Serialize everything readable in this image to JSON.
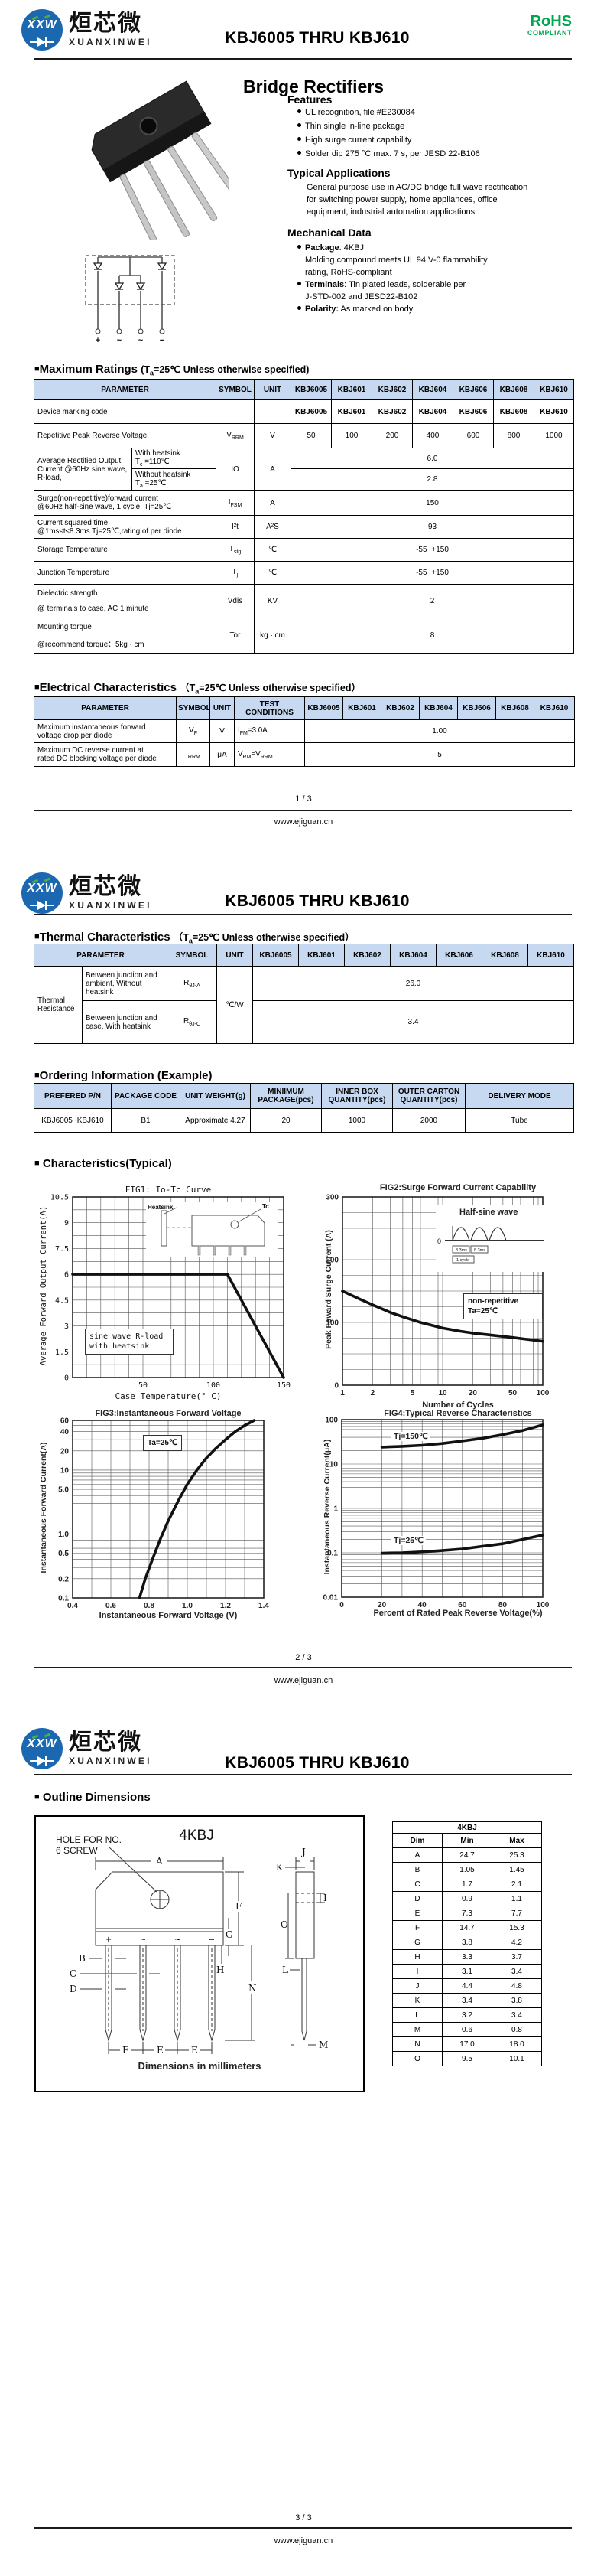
{
  "brand": {
    "logo_xxw": "XXW",
    "logo_cn": "烜芯微",
    "logo_en": "XUANXINWEI",
    "doc_title": "KBJ6005 THRU KBJ610",
    "rohs": "RoHS",
    "rohs_sub": "COMPLIANT",
    "site": "www.ejiguan.cn"
  },
  "footer": {
    "p1": "1 / 3",
    "p2": "2 / 3",
    "p3": "3 / 3"
  },
  "models": [
    "KBJ6005",
    "KBJ601",
    "KBJ602",
    "KBJ604",
    "KBJ606",
    "KBJ608",
    "KBJ610"
  ],
  "page1": {
    "product_title": "Bridge Rectifiers",
    "features": {
      "title": "Features",
      "items": [
        "UL recognition, file #E230084",
        "Thin single in-line package",
        "High surge current capability",
        "Solder dip 275 °C max. 7 s, per JESD 22-B106"
      ]
    },
    "applications": {
      "title": "Typical  Applications",
      "lines": [
        "General purpose use in AC/DC bridge full wave rectification",
        "for switching power supply, home appliances, office",
        "equipment, industrial automation applications."
      ]
    },
    "mechanical": {
      "title": "Mechanical Data",
      "items": [
        {
          "bold": "Package",
          "rest": ": 4KBJ"
        },
        {
          "bold": "",
          "rest": "Molding compound meets UL 94 V-0 flammability"
        },
        {
          "bold": "",
          "rest": "rating, RoHS-compliant"
        },
        {
          "bold": "Terminals",
          "rest": ": Tin plated leads, solderable per"
        },
        {
          "bold": "",
          "rest": "J-STD-002 and JESD22-B102"
        },
        {
          "bold": "Polarity:",
          "rest": " As marked on body"
        }
      ]
    },
    "schematic_terminals": [
      "+",
      "~",
      "~",
      "−"
    ]
  },
  "max_ratings": {
    "marker": "■",
    "title": "Maximum Ratings",
    "cond_pre": "(T",
    "cond_sub": "a",
    "cond_rest": "=25℃ Unless otherwise specified)",
    "h_param": "PARAMETER",
    "h_symbol": "SYMBOL",
    "h_unit": "UNIT",
    "marking": {
      "param": "Device marking code"
    },
    "vrrm": {
      "param": "Repetitive Peak Reverse Voltage",
      "sym": "V",
      "sym_sub": "RRM",
      "unit": "V",
      "values": [
        "50",
        "100",
        "200",
        "400",
        "600",
        "800",
        "1000"
      ]
    },
    "io": {
      "param": "Average Rectified Output Current @60Hz sine wave, R-load,",
      "c1l1": "With heatsink",
      "c1p": "T",
      "c1s": "c",
      "c1r": " =110℃",
      "c2l1": "Without heatsink",
      "c2p": "T",
      "c2s": "a",
      "c2r": " =25℃",
      "sym": "IO",
      "unit": "A",
      "v1": "6.0",
      "v2": "2.8"
    },
    "ifsm": {
      "p1": "Surge(non-repetitive)forward current",
      "p2": "@60Hz half-sine wave, 1 cycle,  Tj=25℃",
      "sym": "I",
      "sym_sub": "FSM",
      "unit": "A",
      "value": "150"
    },
    "i2t": {
      "p1": "Current squared time",
      "p2": "@1ms≤t≤8.3ms Tj=25℃,rating of per diode",
      "sym": "I²t",
      "unit": "A²S",
      "value": "93"
    },
    "tstg": {
      "param": "Storage Temperature",
      "sym": "T",
      "sym_sub": "stg",
      "unit": "℃",
      "value": "-55~+150"
    },
    "tj": {
      "param": "Junction Temperature",
      "sym": "T",
      "sym_sub": "j",
      "unit": "℃",
      "value": "-55~+150"
    },
    "vdis": {
      "p1": "Dielectric strength",
      "p2": "@ terminals to case, AC 1 minute",
      "sym": "Vdis",
      "unit": "KV",
      "value": "2"
    },
    "tor": {
      "p1": "Mounting torque",
      "p2": "@recommend torque：5kg · cm",
      "sym": "Tor",
      "unit": "kg · cm",
      "value": "8"
    }
  },
  "electrical": {
    "marker": "■",
    "title": "Electrical Characteristics",
    "cond_pre": "（T",
    "cond_sub": "a",
    "cond_rest": "=25℃ Unless otherwise specified）",
    "h_param": "PARAMETER",
    "h_symbol": "SYMBOL",
    "h_unit": "UNIT",
    "h_test": "TEST CONDITIONS",
    "vf": {
      "p1": "Maximum instantaneous forward",
      "p2": "voltage drop per diode",
      "sym": "V",
      "sym_sub": "F",
      "unit": "V",
      "cond_b": "I",
      "cond_s": "FM",
      "cond_r": "=3.0A",
      "value": "1.00"
    },
    "irrm": {
      "p1": "Maximum DC reverse current at",
      "p2": "rated DC blocking voltage per diode",
      "sym": "I",
      "sym_sub": "RRM",
      "unit": "μA",
      "cond_b": "V",
      "cond_s": "RM",
      "cond_r": "=V",
      "cond_s2": "RRM",
      "value": "5"
    }
  },
  "thermal": {
    "marker": "■",
    "title": "Thermal Characteristics",
    "cond_pre": "（T",
    "cond_sub": "a",
    "cond_rest": "=25℃ Unless otherwise specified）",
    "h_param": "PARAMETER",
    "h_symbol": "SYMBOL",
    "h_unit": "UNIT",
    "group": "Thermal Resistance",
    "r1": {
      "p": "Between junction and ambient, Without heatsink",
      "sym": "R",
      "sym_sub": "θJ-A",
      "value": "26.0"
    },
    "r2": {
      "p": "Between junction and case, With heatsink",
      "sym": "R",
      "sym_sub": "θJ-C",
      "value": "3.4"
    },
    "unit": "℃/W"
  },
  "ordering": {
    "marker": "■",
    "title": "Ordering Information (Example)",
    "headers": [
      "PREFERED P/N",
      "PACKAGE CODE",
      "UNIT WEIGHT(g)",
      "MINIIMUM PACKAGE(pcs)",
      "INNER BOX QUANTITY(pcs)",
      "OUTER CARTON QUANTITY(pcs)",
      "DELIVERY MODE"
    ],
    "row": [
      "KBJ6005~KBJ610",
      "B1",
      "Approximate 4.27",
      "20",
      "1000",
      "2000",
      "Tube"
    ]
  },
  "characteristics": {
    "marker": "■",
    "title": "Characteristics(Typical)"
  },
  "chart_data": [
    {
      "id": "fig1",
      "type": "line",
      "title": "FIG1: Io-Tc Curve",
      "xlabel": "Case Temperature(° C)",
      "ylabel": "Average Forward Output Current(A)",
      "xscale": "linear",
      "yscale": "linear",
      "xlim": [
        0,
        150
      ],
      "ylim": [
        0,
        10.5
      ],
      "xticks": [
        [
          50,
          "50"
        ],
        [
          100,
          "100"
        ],
        [
          150,
          "150"
        ]
      ],
      "yticks": [
        [
          0,
          "0"
        ],
        [
          1.5,
          "1.5"
        ],
        [
          3,
          "3"
        ],
        [
          4.5,
          "4.5"
        ],
        [
          6,
          "6"
        ],
        [
          7.5,
          "7.5"
        ],
        [
          9,
          "9"
        ],
        [
          10.5,
          "10.5"
        ]
      ],
      "xgrid": [
        10,
        20,
        30,
        40,
        50,
        60,
        70,
        80,
        90,
        100,
        110,
        120,
        130,
        140
      ],
      "ygrid": [
        0.75,
        1.5,
        2.25,
        3,
        3.75,
        4.5,
        5.25,
        6,
        6.75,
        7.5,
        8.25,
        9,
        9.75
      ],
      "annotation_lines": [
        "sine wave R-load",
        "with heatsink"
      ],
      "inset": [
        "Heatsink",
        "Tc"
      ],
      "series": [
        {
          "name": "Io vs Tc",
          "points": [
            [
              0,
              6
            ],
            [
              110,
              6
            ],
            [
              150,
              0
            ]
          ]
        }
      ]
    },
    {
      "id": "fig2",
      "type": "line",
      "title": "FIG2:Surge Forward Current Capability",
      "xlabel": "Number of Cycles",
      "ylabel": "Peak Foward Surge Current (A)",
      "xscale": "log",
      "yscale": "linear",
      "xlim": [
        1,
        100
      ],
      "ylim": [
        0,
        300
      ],
      "xticks": [
        [
          1,
          "1"
        ],
        [
          2,
          "2"
        ],
        [
          5,
          "5"
        ],
        [
          10,
          "10"
        ],
        [
          20,
          "20"
        ],
        [
          50,
          "50"
        ],
        [
          100,
          "100"
        ]
      ],
      "yticks": [
        [
          0,
          "0"
        ],
        [
          100,
          "100"
        ],
        [
          200,
          "200"
        ],
        [
          300,
          "300"
        ]
      ],
      "xgrid": [
        2,
        3,
        4,
        5,
        6,
        7,
        8,
        9,
        10,
        20,
        30,
        40,
        50,
        60,
        70,
        80,
        90
      ],
      "ygrid": [
        25,
        50,
        75,
        100,
        125,
        150,
        175,
        200,
        225,
        250,
        275
      ],
      "annotation_lines": [
        "non-repetitive",
        "Ta=25℃"
      ],
      "inset_title": "Half-sine wave",
      "inset_zero": "0",
      "inset_sub": [
        "8.3ms",
        "8.3ms",
        "1 cycle"
      ],
      "series": [
        {
          "name": "IFSM vs cycles",
          "points": [
            [
              1,
              150
            ],
            [
              1.5,
              137
            ],
            [
              2,
              128
            ],
            [
              3,
              116
            ],
            [
              4,
              109
            ],
            [
              5,
              104
            ],
            [
              6,
              100
            ],
            [
              8,
              95
            ],
            [
              10,
              91
            ],
            [
              15,
              86
            ],
            [
              20,
              83
            ],
            [
              30,
              80
            ],
            [
              50,
              76
            ],
            [
              70,
              73
            ],
            [
              100,
              70
            ]
          ]
        }
      ]
    },
    {
      "id": "fig3",
      "type": "line",
      "title": "FIG3:Instantaneous Forward Voltage",
      "xlabel": "Instantaneous Forward Voltage (V)",
      "ylabel": "Instantaneous Forward Current(A)",
      "xscale": "linear",
      "yscale": "log",
      "xlim": [
        0.4,
        1.4
      ],
      "ylim": [
        0.1,
        60
      ],
      "xticks": [
        [
          0.4,
          "0.4"
        ],
        [
          0.6,
          "0.6"
        ],
        [
          0.8,
          "0.8"
        ],
        [
          1.0,
          "1.0"
        ],
        [
          1.2,
          "1.2"
        ],
        [
          1.4,
          "1.4"
        ]
      ],
      "yticks": [
        [
          0.1,
          "0.1"
        ],
        [
          0.2,
          "0.2"
        ],
        [
          0.5,
          "0.5"
        ],
        [
          1,
          "1.0"
        ],
        [
          5,
          "5.0"
        ],
        [
          10,
          "10"
        ],
        [
          20,
          "20"
        ],
        [
          40,
          "40"
        ],
        [
          60,
          "60"
        ]
      ],
      "xgrid": [
        0.5,
        0.6,
        0.7,
        0.8,
        0.9,
        1.0,
        1.1,
        1.2,
        1.3
      ],
      "ygrid": [
        0.2,
        0.3,
        0.4,
        0.5,
        0.6,
        0.7,
        0.8,
        0.9,
        1,
        2,
        3,
        4,
        5,
        6,
        7,
        8,
        9,
        10,
        20,
        30,
        40,
        50
      ],
      "annotation": "Ta=25℃",
      "series": [
        {
          "name": "VF curve",
          "points": [
            [
              0.75,
              0.1
            ],
            [
              0.78,
              0.2
            ],
            [
              0.82,
              0.42
            ],
            [
              0.86,
              0.85
            ],
            [
              0.9,
              1.6
            ],
            [
              0.95,
              3.2
            ],
            [
              1.0,
              6
            ],
            [
              1.05,
              10
            ],
            [
              1.1,
              15.5
            ],
            [
              1.15,
              22
            ],
            [
              1.2,
              30
            ],
            [
              1.25,
              40
            ],
            [
              1.3,
              50
            ],
            [
              1.35,
              60
            ]
          ]
        }
      ]
    },
    {
      "id": "fig4",
      "type": "line",
      "title": "FIG4:Typical Reverse Characteristics",
      "xlabel": "Percent of Rated Peak Reverse Voltage(%)",
      "ylabel": "Instantaneous Reverse Current(μA)",
      "xscale": "linear",
      "yscale": "log",
      "xlim": [
        0,
        100
      ],
      "ylim": [
        0.01,
        100
      ],
      "xticks": [
        [
          0,
          "0"
        ],
        [
          20,
          "20"
        ],
        [
          40,
          "40"
        ],
        [
          60,
          "60"
        ],
        [
          80,
          "80"
        ],
        [
          100,
          "100"
        ]
      ],
      "yticks": [
        [
          0.01,
          "0.01"
        ],
        [
          0.1,
          "0.1"
        ],
        [
          1,
          "1"
        ],
        [
          10,
          "10"
        ],
        [
          100,
          "100"
        ]
      ],
      "xgrid": [
        10,
        20,
        30,
        40,
        50,
        60,
        70,
        80,
        90
      ],
      "ygrid": [
        0.02,
        0.03,
        0.04,
        0.05,
        0.06,
        0.07,
        0.08,
        0.09,
        0.1,
        0.2,
        0.3,
        0.4,
        0.5,
        0.6,
        0.7,
        0.8,
        0.9,
        1,
        2,
        3,
        4,
        5,
        6,
        7,
        8,
        9,
        10,
        20,
        30,
        40,
        50,
        60,
        70,
        80,
        90
      ],
      "series": [
        {
          "name": "Tj=150C",
          "label": "Tj=150℃",
          "points": [
            [
              20,
              24
            ],
            [
              30,
              25
            ],
            [
              40,
              26.5
            ],
            [
              50,
              29
            ],
            [
              60,
              33
            ],
            [
              70,
              38
            ],
            [
              80,
              46
            ],
            [
              90,
              57
            ],
            [
              100,
              76
            ]
          ]
        },
        {
          "name": "Tj=25C",
          "label": "Tj=25℃",
          "points": [
            [
              20,
              0.098
            ],
            [
              30,
              0.1
            ],
            [
              40,
              0.105
            ],
            [
              50,
              0.112
            ],
            [
              60,
              0.122
            ],
            [
              70,
              0.14
            ],
            [
              80,
              0.16
            ],
            [
              90,
              0.2
            ],
            [
              100,
              0.25
            ]
          ]
        }
      ]
    }
  ],
  "outline": {
    "marker": "■",
    "title": "Outline Dimensions",
    "pkg": "4KBJ",
    "hole1": "HOLE FOR NO.",
    "hole2": "6 SCREW",
    "caption": "Dimensions in millimeters",
    "dims": [
      "A",
      "B",
      "C",
      "D",
      "E",
      "F",
      "G",
      "H",
      "I",
      "J",
      "K",
      "L",
      "M",
      "N",
      "O"
    ],
    "table": {
      "title": "4KBJ",
      "cols": [
        "Dim",
        "Min",
        "Max"
      ],
      "rows": [
        [
          "A",
          "24.7",
          "25.3"
        ],
        [
          "B",
          "1.05",
          "1.45"
        ],
        [
          "C",
          "1.7",
          "2.1"
        ],
        [
          "D",
          "0.9",
          "1.1"
        ],
        [
          "E",
          "7.3",
          "7.7"
        ],
        [
          "F",
          "14.7",
          "15.3"
        ],
        [
          "G",
          "3.8",
          "4.2"
        ],
        [
          "H",
          "3.3",
          "3.7"
        ],
        [
          "I",
          "3.1",
          "3.4"
        ],
        [
          "J",
          "4.4",
          "4.8"
        ],
        [
          "K",
          "3.4",
          "3.8"
        ],
        [
          "L",
          "3.2",
          "3.4"
        ],
        [
          "M",
          "0.6",
          "0.8"
        ],
        [
          "N",
          "17.0",
          "18.0"
        ],
        [
          "O",
          "9.5",
          "10.1"
        ]
      ]
    }
  },
  "colors": {
    "table_header": "#c6d9f0",
    "rohs_green": "#00a650",
    "logo_blue": "#1b67b0"
  }
}
